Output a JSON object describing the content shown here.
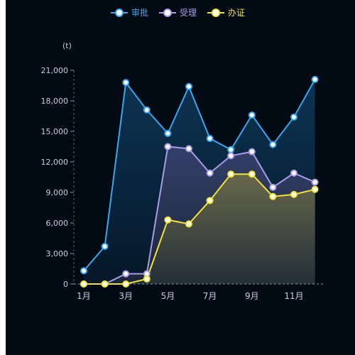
{
  "chart_data": {
    "type": "area",
    "unit_label": "(t)",
    "categories": [
      "1月",
      "2月",
      "3月",
      "4月",
      "5月",
      "6月",
      "7月",
      "8月",
      "9月",
      "10月",
      "11月",
      "12月"
    ],
    "x_tick_labels_shown": [
      "1月",
      "3月",
      "5月",
      "7月",
      "9月",
      "11月"
    ],
    "ylim": [
      0,
      21000
    ],
    "yticks": [
      0,
      3000,
      6000,
      9000,
      12000,
      15000,
      18000,
      21000
    ],
    "ytick_labels": [
      "0",
      "3,000",
      "6,000",
      "9,000",
      "12,000",
      "15,000",
      "18,000",
      "21,000"
    ],
    "legend_position": "top-center",
    "grid": false,
    "series": [
      {
        "name": "审批",
        "color": "#3aa6ee",
        "fill_top": "#0d3656",
        "fill_bottom": "#06182a",
        "values": [
          1300,
          3700,
          19800,
          17100,
          14800,
          19400,
          14300,
          13200,
          16600,
          13700,
          16400,
          20100
        ]
      },
      {
        "name": "受理",
        "color": "#a89de6",
        "fill_top": "#36406c",
        "fill_bottom": "#1c2638",
        "values": [
          0,
          0,
          1000,
          1000,
          13500,
          13300,
          10900,
          12600,
          13000,
          9500,
          10900,
          10000
        ]
      },
      {
        "name": "办证",
        "color": "#f3e23a",
        "fill_top": "#6a6a4a",
        "fill_bottom": "#243038",
        "values": [
          0,
          0,
          0,
          500,
          6300,
          5900,
          8200,
          10800,
          10800,
          8600,
          8800,
          9300
        ]
      }
    ]
  }
}
